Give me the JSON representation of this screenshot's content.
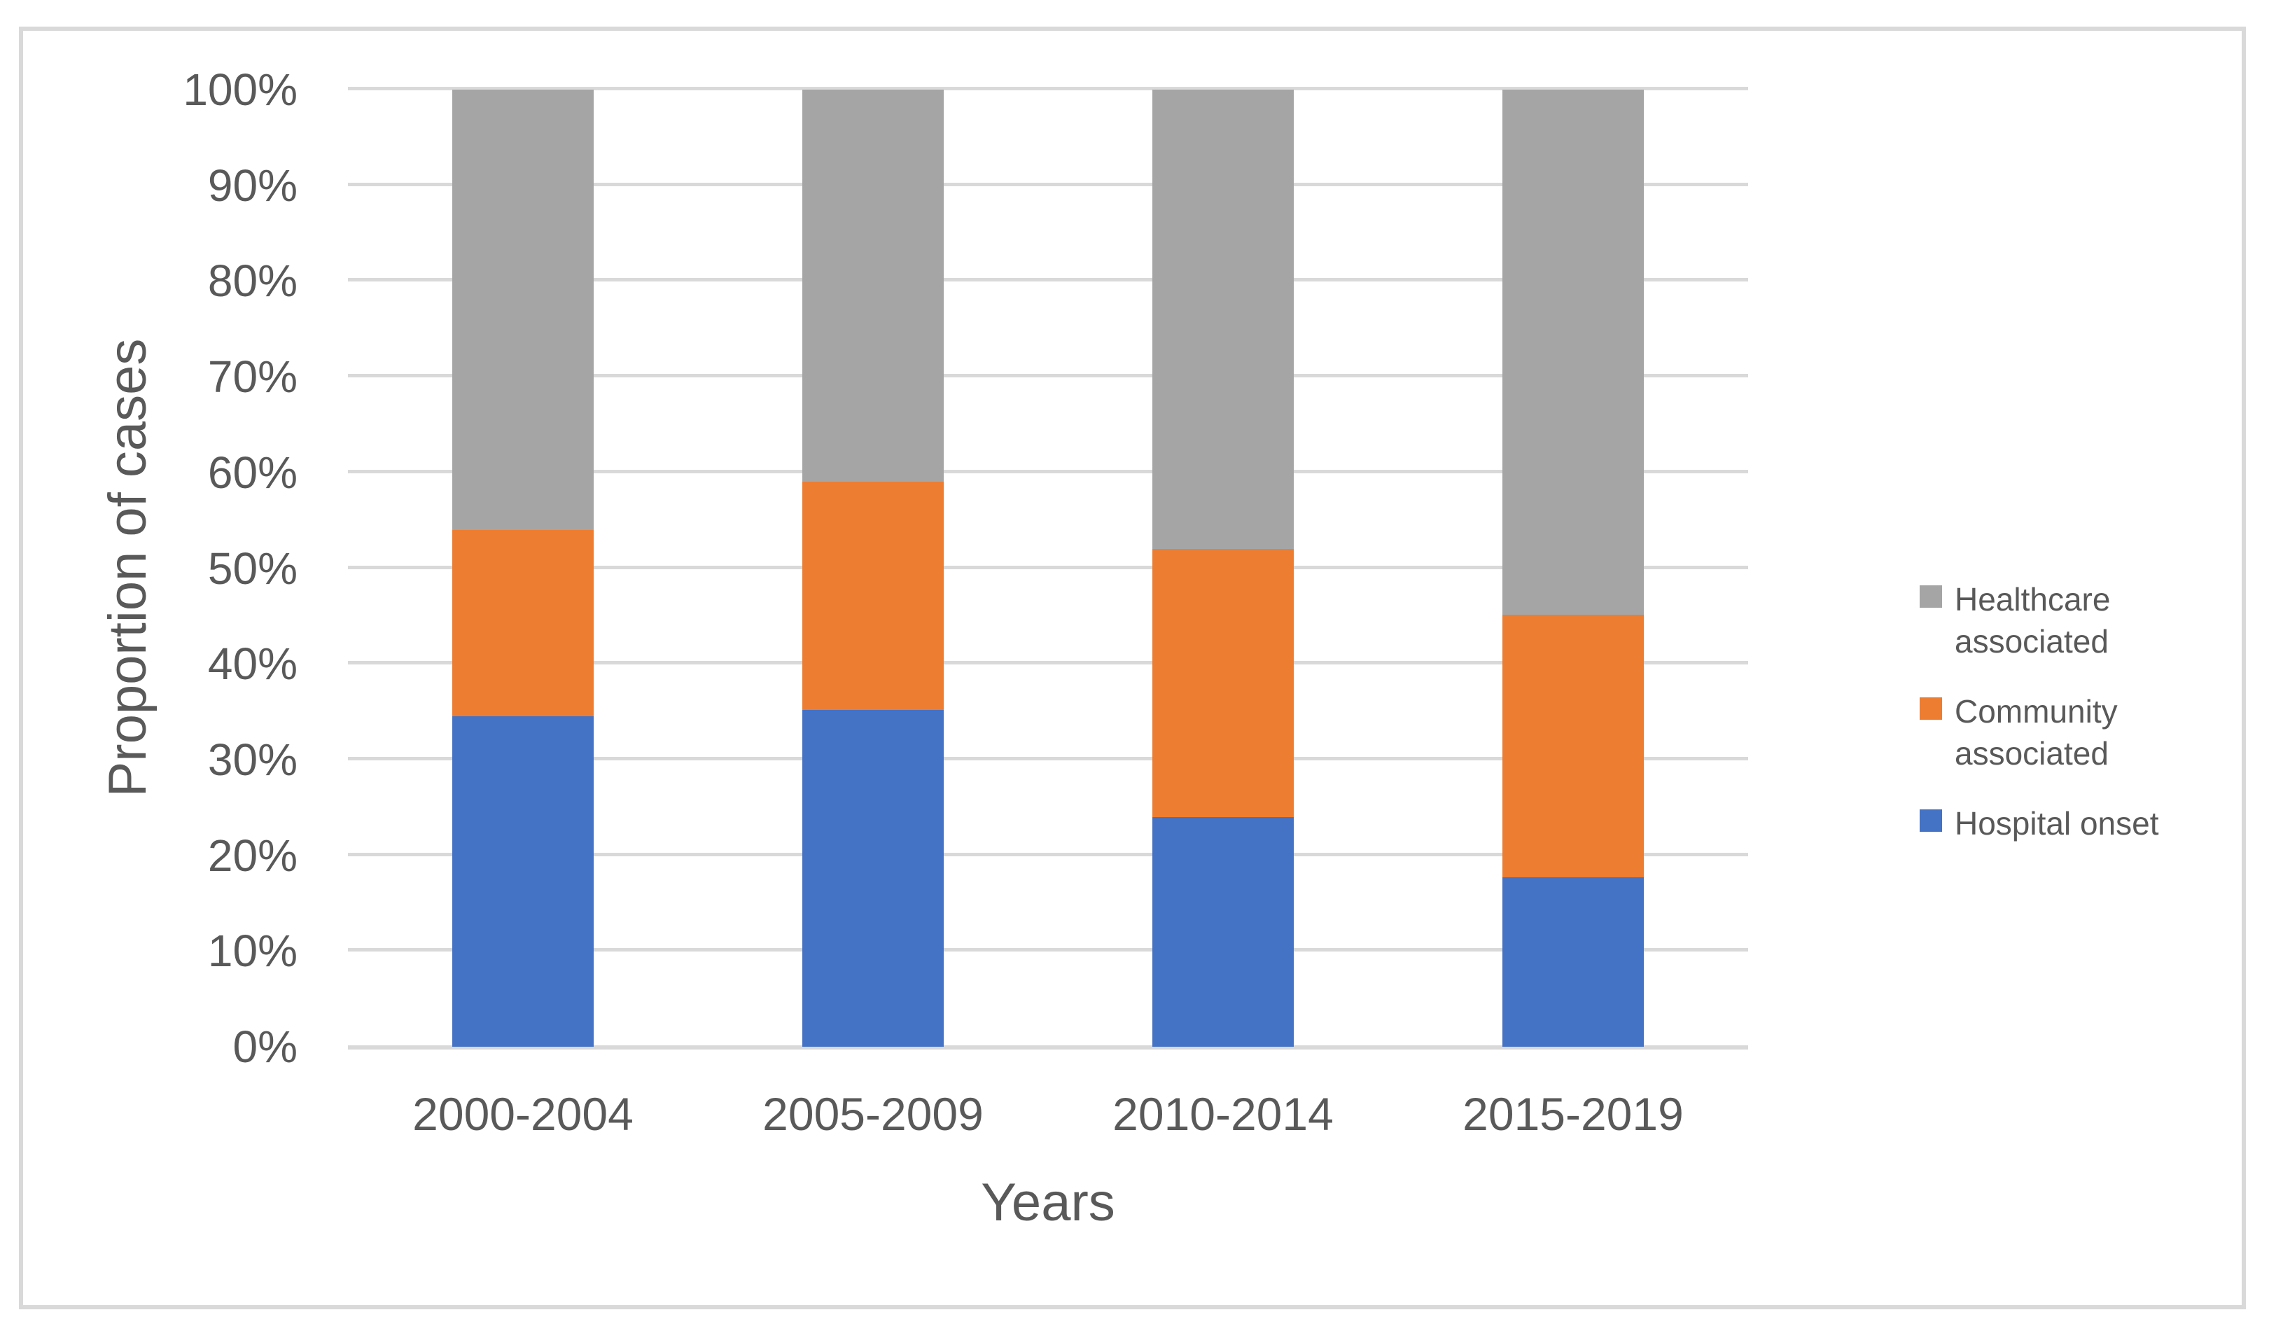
{
  "figure": {
    "background_color": "#FFFFFF",
    "border_color": "#D9D9D9",
    "text_color": "#595959",
    "grid_color": "#D9D9D9"
  },
  "chart_data": {
    "type": "bar",
    "stacked": true,
    "percent_stacked": true,
    "title": "",
    "xlabel": "Years",
    "ylabel": "Proportion of cases",
    "categories": [
      "2000-2004",
      "2005-2009",
      "2010-2014",
      "2015-2019"
    ],
    "series": [
      {
        "name": "Hospital onset",
        "color": "#4472C4",
        "values": [
          34.5,
          35.2,
          24.0,
          17.7
        ]
      },
      {
        "name": "Community associated",
        "color": "#ED7D31",
        "values": [
          19.5,
          23.8,
          28.0,
          27.4
        ]
      },
      {
        "name": "Healthcare associated",
        "color": "#A5A5A5",
        "values": [
          46.0,
          41.0,
          48.0,
          54.9
        ]
      }
    ],
    "y_ticks": [
      {
        "label": "0%",
        "value": 0
      },
      {
        "label": "10%",
        "value": 10
      },
      {
        "label": "20%",
        "value": 20
      },
      {
        "label": "30%",
        "value": 30
      },
      {
        "label": "40%",
        "value": 40
      },
      {
        "label": "50%",
        "value": 50
      },
      {
        "label": "60%",
        "value": 60
      },
      {
        "label": "70%",
        "value": 70
      },
      {
        "label": "80%",
        "value": 80
      },
      {
        "label": "90%",
        "value": 90
      },
      {
        "label": "100%",
        "value": 100
      }
    ],
    "ylim": [
      0,
      100
    ],
    "grid": "horizontal",
    "legend_position": "right"
  },
  "legend": {
    "items": [
      {
        "label": "Healthcare associated",
        "color": "#A5A5A5"
      },
      {
        "label": "Community associated",
        "color": "#ED7D31"
      },
      {
        "label": "Hospital onset",
        "color": "#4472C4"
      }
    ]
  }
}
